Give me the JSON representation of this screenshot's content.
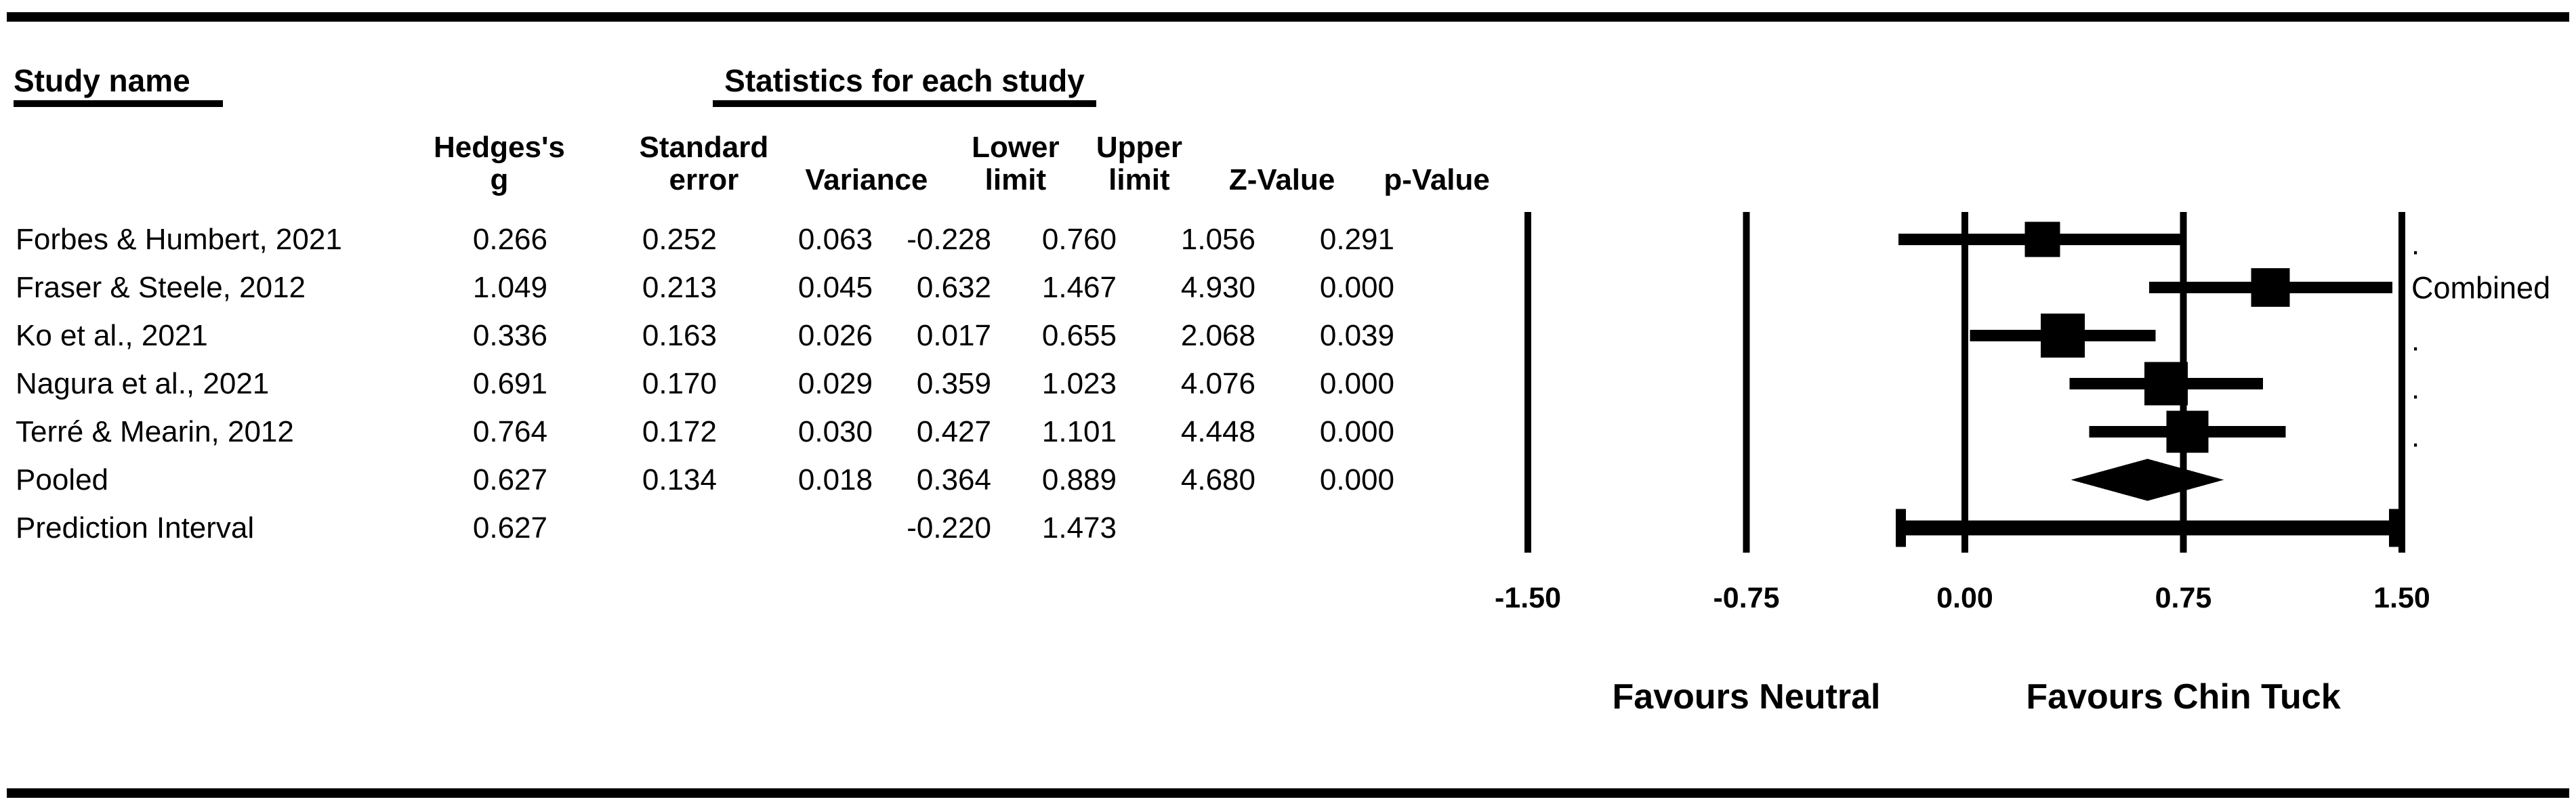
{
  "figure": {
    "study_name_title": "Study name",
    "stats_title": "Statistics for each study",
    "header_line1": {
      "study": "",
      "hedges": "Hedges's",
      "standard": "Standard",
      "variance": "",
      "lower": "Lower",
      "upper": "Upper",
      "z": "",
      "p": ""
    },
    "header_line2": {
      "study": "",
      "hedges": "g",
      "standard": "error",
      "variance": "Variance",
      "lower": "limit",
      "upper": "limit",
      "z": "Z-Value",
      "p": "p-Value"
    },
    "rows": [
      [
        "Forbes & Humbert, 2021",
        "0.266",
        "0.252",
        "0.063",
        "-0.228",
        "0.760",
        "1.056",
        "0.291"
      ],
      [
        "Fraser & Steele, 2012",
        "1.049",
        "0.213",
        "0.045",
        "0.632",
        "1.467",
        "4.930",
        "0.000"
      ],
      [
        "Ko et al., 2021",
        "0.336",
        "0.163",
        "0.026",
        "0.017",
        "0.655",
        "2.068",
        "0.039"
      ],
      [
        "Nagura et al., 2021",
        "0.691",
        "0.170",
        "0.029",
        "0.359",
        "1.023",
        "4.076",
        "0.000"
      ],
      [
        "Terré & Mearin, 2012",
        "0.764",
        "0.172",
        "0.030",
        "0.427",
        "1.101",
        "4.448",
        "0.000"
      ],
      [
        "Pooled",
        "0.627",
        "0.134",
        "0.018",
        "0.364",
        "0.889",
        "4.680",
        "0.000"
      ],
      [
        "Prediction Interval",
        "0.627",
        "",
        "",
        "-0.220",
        "1.473",
        "",
        ""
      ]
    ]
  },
  "chart_data": {
    "type": "forest",
    "title": "",
    "xlabel": "",
    "xlim": [
      -1.5,
      1.5
    ],
    "x_tick_values": [
      -1.5,
      -0.75,
      0.0,
      0.75,
      1.5
    ],
    "x_tick_labels": [
      "-1.50",
      "-0.75",
      "0.00",
      "0.75",
      "1.50"
    ],
    "grid": "vertical-lines-at-ticks",
    "favours_left": "Favours Neutral",
    "favours_right": "Favours Chin Tuck",
    "marker_color": "#000000",
    "studies": [
      {
        "name": "Forbes & Humbert, 2021",
        "g": 0.266,
        "lower": -0.228,
        "upper": 0.76,
        "marker_px": 52,
        "right_label": "."
      },
      {
        "name": "Fraser & Steele, 2012",
        "g": 1.049,
        "lower": 0.632,
        "upper": 1.467,
        "marker_px": 57,
        "right_label": "Combined"
      },
      {
        "name": "Ko et al., 2021",
        "g": 0.336,
        "lower": 0.017,
        "upper": 0.655,
        "marker_px": 65,
        "right_label": "."
      },
      {
        "name": "Nagura et al., 2021",
        "g": 0.691,
        "lower": 0.359,
        "upper": 1.023,
        "marker_px": 64,
        "right_label": "."
      },
      {
        "name": "Terré & Mearin, 2012",
        "g": 0.764,
        "lower": 0.427,
        "upper": 1.101,
        "marker_px": 62,
        "right_label": "."
      }
    ],
    "pooled": {
      "name": "Pooled",
      "g": 0.627,
      "lower": 0.364,
      "upper": 0.889,
      "shape": "diamond"
    },
    "prediction_interval": {
      "name": "Prediction Interval",
      "g": 0.627,
      "lower": -0.22,
      "upper": 1.473,
      "shape": "capped-bar"
    }
  }
}
